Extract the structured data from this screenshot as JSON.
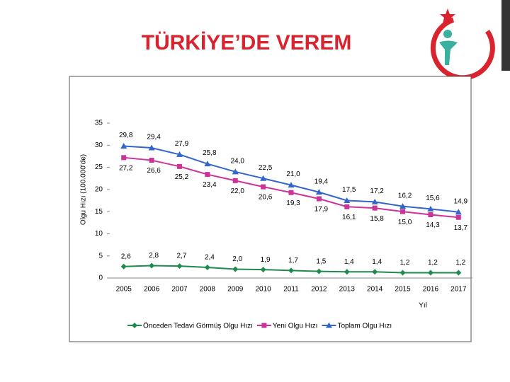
{
  "title": "TÜRKİYE’DE VEREM",
  "chart_data": {
    "type": "line",
    "y_label": "Olgu Hızı (100.000'de)",
    "x_label": "Yıl",
    "categories": [
      "2005",
      "2006",
      "2007",
      "2008",
      "2009",
      "2010",
      "2011",
      "2012",
      "2013",
      "2014",
      "2015",
      "2016",
      "2017"
    ],
    "ylim": [
      0,
      35
    ],
    "yticks": [
      0,
      5,
      10,
      15,
      20,
      25,
      30,
      35
    ],
    "legend": "bottom",
    "series": [
      {
        "name": "Önceden Tedavi Görmüş Olgu Hızı",
        "color": "#1e8a4c",
        "marker": "diamond",
        "values": [
          2.6,
          2.8,
          2.7,
          2.4,
          2.0,
          1.9,
          1.7,
          1.5,
          1.4,
          1.4,
          1.2,
          1.2,
          1.2
        ],
        "value_labels": [
          "2,6",
          "2,8",
          "2,7",
          "2,4",
          "2,0",
          "1,9",
          "1,7",
          "1,5",
          "1,4",
          "1,4",
          "1,2",
          "1,2",
          "1,2"
        ]
      },
      {
        "name": "Yeni Olgu Hızı",
        "color": "#cc3399",
        "marker": "square",
        "values": [
          27.2,
          26.6,
          25.2,
          23.4,
          22.0,
          20.6,
          19.3,
          17.9,
          16.1,
          15.8,
          15.0,
          14.3,
          13.7
        ],
        "value_labels": [
          "27,2",
          "26,6",
          "25,2",
          "23,4",
          "22,0",
          "20,6",
          "19,3",
          "17,9",
          "16,1",
          "15,8",
          "15,0",
          "14,3",
          "13,7"
        ]
      },
      {
        "name": "Toplam Olgu Hızı",
        "color": "#3366cc",
        "marker": "triangle",
        "values": [
          29.8,
          29.4,
          27.9,
          25.8,
          24.0,
          22.5,
          21.0,
          19.4,
          17.5,
          17.2,
          16.2,
          15.6,
          14.9
        ],
        "value_labels": [
          "29,8",
          "29,4",
          "27,9",
          "25,8",
          "24,0",
          "22,5",
          "21,0",
          "19,4",
          "17,5",
          "17,2",
          "16,2",
          "15,6",
          "14,9"
        ]
      }
    ]
  }
}
